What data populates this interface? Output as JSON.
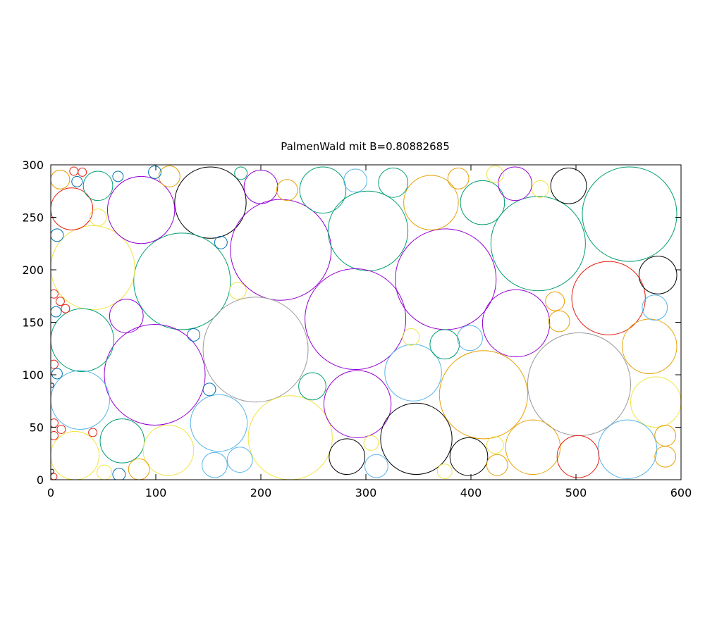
{
  "chart_data": {
    "type": "scatter",
    "title": "PalmenWald mit B=0.80882685",
    "xlim": [
      0,
      600
    ],
    "ylim": [
      0,
      300
    ],
    "x_ticks": [
      "0",
      "100",
      "200",
      "300",
      "400",
      "500",
      "600"
    ],
    "y_ticks": [
      "0",
      "50",
      "100",
      "150",
      "200",
      "250",
      "300"
    ],
    "grid": false,
    "legend": "none",
    "colors": {
      "purple": "#9400d3",
      "teal": "#009e73",
      "skyblue": "#56b4e9",
      "orange": "#e69f00",
      "yellow": "#f0e442",
      "darkblue": "#0072b2",
      "red": "#e51e10",
      "black": "#000000",
      "gray": "#999999"
    },
    "circles": [
      {
        "x": 152,
        "y": 264,
        "r": 34,
        "color": "black"
      },
      {
        "x": 219,
        "y": 219,
        "r": 48,
        "color": "purple"
      },
      {
        "x": 302,
        "y": 237,
        "r": 38,
        "color": "teal"
      },
      {
        "x": 376,
        "y": 191,
        "r": 48,
        "color": "purple"
      },
      {
        "x": 464,
        "y": 225,
        "r": 45,
        "color": "teal"
      },
      {
        "x": 551,
        "y": 253,
        "r": 45,
        "color": "teal"
      },
      {
        "x": 125,
        "y": 189,
        "r": 46,
        "color": "teal"
      },
      {
        "x": 40,
        "y": 202,
        "r": 40,
        "color": "yellow"
      },
      {
        "x": 86,
        "y": 257,
        "r": 32,
        "color": "purple"
      },
      {
        "x": 20,
        "y": 258,
        "r": 20,
        "color": "red"
      },
      {
        "x": 195,
        "y": 124,
        "r": 50,
        "color": "gray"
      },
      {
        "x": 290,
        "y": 153,
        "r": 48,
        "color": "purple"
      },
      {
        "x": 99,
        "y": 100,
        "r": 48,
        "color": "purple"
      },
      {
        "x": 30,
        "y": 133,
        "r": 30,
        "color": "teal"
      },
      {
        "x": 28,
        "y": 76,
        "r": 28,
        "color": "skyblue"
      },
      {
        "x": 23,
        "y": 23,
        "r": 23,
        "color": "yellow"
      },
      {
        "x": 68,
        "y": 37,
        "r": 21,
        "color": "teal"
      },
      {
        "x": 112,
        "y": 28,
        "r": 24,
        "color": "yellow"
      },
      {
        "x": 160,
        "y": 54,
        "r": 27,
        "color": "skyblue"
      },
      {
        "x": 228,
        "y": 40,
        "r": 40,
        "color": "yellow"
      },
      {
        "x": 292,
        "y": 72,
        "r": 32,
        "color": "purple"
      },
      {
        "x": 282,
        "y": 22,
        "r": 17,
        "color": "black"
      },
      {
        "x": 348,
        "y": 39,
        "r": 34,
        "color": "black"
      },
      {
        "x": 345,
        "y": 102,
        "r": 27,
        "color": "skyblue"
      },
      {
        "x": 412,
        "y": 81,
        "r": 42,
        "color": "orange"
      },
      {
        "x": 503,
        "y": 91,
        "r": 49,
        "color": "gray"
      },
      {
        "x": 443,
        "y": 149,
        "r": 32,
        "color": "purple"
      },
      {
        "x": 531,
        "y": 173,
        "r": 35,
        "color": "red"
      },
      {
        "x": 570,
        "y": 127,
        "r": 26,
        "color": "orange"
      },
      {
        "x": 576,
        "y": 74,
        "r": 24,
        "color": "yellow"
      },
      {
        "x": 549,
        "y": 29,
        "r": 28,
        "color": "skyblue"
      },
      {
        "x": 459,
        "y": 31,
        "r": 26,
        "color": "orange"
      },
      {
        "x": 502,
        "y": 22,
        "r": 20,
        "color": "red"
      },
      {
        "x": 398,
        "y": 22,
        "r": 18,
        "color": "black"
      },
      {
        "x": 362,
        "y": 264,
        "r": 26,
        "color": "orange"
      },
      {
        "x": 411,
        "y": 264,
        "r": 21,
        "color": "teal"
      },
      {
        "x": 259,
        "y": 276,
        "r": 22,
        "color": "teal"
      },
      {
        "x": 200,
        "y": 279,
        "r": 16,
        "color": "purple"
      },
      {
        "x": 45,
        "y": 280,
        "r": 14,
        "color": "teal"
      },
      {
        "x": 493,
        "y": 280,
        "r": 17,
        "color": "black"
      },
      {
        "x": 442,
        "y": 282,
        "r": 16,
        "color": "purple"
      },
      {
        "x": 326,
        "y": 283,
        "r": 14,
        "color": "teal"
      },
      {
        "x": 290,
        "y": 285,
        "r": 11,
        "color": "skyblue"
      },
      {
        "x": 388,
        "y": 287,
        "r": 10,
        "color": "orange"
      },
      {
        "x": 113,
        "y": 289,
        "r": 10,
        "color": "orange"
      },
      {
        "x": 225,
        "y": 276,
        "r": 10,
        "color": "orange"
      },
      {
        "x": 9,
        "y": 286,
        "r": 9,
        "color": "orange"
      },
      {
        "x": 423,
        "y": 291,
        "r": 8,
        "color": "yellow"
      },
      {
        "x": 466,
        "y": 277,
        "r": 8,
        "color": "yellow"
      },
      {
        "x": 181,
        "y": 292,
        "r": 6,
        "color": "teal"
      },
      {
        "x": 64,
        "y": 289,
        "r": 5,
        "color": "darkblue"
      },
      {
        "x": 99,
        "y": 293,
        "r": 6,
        "color": "darkblue"
      },
      {
        "x": 25,
        "y": 284,
        "r": 5,
        "color": "darkblue"
      },
      {
        "x": 22,
        "y": 294,
        "r": 4,
        "color": "red"
      },
      {
        "x": 30,
        "y": 293,
        "r": 4,
        "color": "red"
      },
      {
        "x": 45,
        "y": 250,
        "r": 8,
        "color": "yellow"
      },
      {
        "x": 6,
        "y": 233,
        "r": 6,
        "color": "darkblue"
      },
      {
        "x": 162,
        "y": 226,
        "r": 6,
        "color": "darkblue"
      },
      {
        "x": 178,
        "y": 180,
        "r": 8,
        "color": "yellow"
      },
      {
        "x": 72,
        "y": 156,
        "r": 16,
        "color": "purple"
      },
      {
        "x": 136,
        "y": 138,
        "r": 6,
        "color": "darkblue"
      },
      {
        "x": 151,
        "y": 86,
        "r": 6,
        "color": "darkblue"
      },
      {
        "x": 249,
        "y": 89,
        "r": 13,
        "color": "teal"
      },
      {
        "x": 180,
        "y": 19,
        "r": 12,
        "color": "skyblue"
      },
      {
        "x": 156,
        "y": 14,
        "r": 12,
        "color": "skyblue"
      },
      {
        "x": 84,
        "y": 10,
        "r": 10,
        "color": "orange"
      },
      {
        "x": 51,
        "y": 7,
        "r": 7,
        "color": "yellow"
      },
      {
        "x": 65,
        "y": 5,
        "r": 6,
        "color": "darkblue"
      },
      {
        "x": 310,
        "y": 13,
        "r": 11,
        "color": "skyblue"
      },
      {
        "x": 305,
        "y": 35,
        "r": 7,
        "color": "yellow"
      },
      {
        "x": 375,
        "y": 8,
        "r": 7,
        "color": "yellow"
      },
      {
        "x": 425,
        "y": 14,
        "r": 10,
        "color": "orange"
      },
      {
        "x": 423,
        "y": 33,
        "r": 8,
        "color": "yellow"
      },
      {
        "x": 343,
        "y": 136,
        "r": 8,
        "color": "yellow"
      },
      {
        "x": 375,
        "y": 129,
        "r": 14,
        "color": "teal"
      },
      {
        "x": 399,
        "y": 135,
        "r": 12,
        "color": "skyblue"
      },
      {
        "x": 480,
        "y": 170,
        "r": 9,
        "color": "orange"
      },
      {
        "x": 484,
        "y": 151,
        "r": 10,
        "color": "orange"
      },
      {
        "x": 578,
        "y": 195,
        "r": 18,
        "color": "black"
      },
      {
        "x": 575,
        "y": 164,
        "r": 12,
        "color": "skyblue"
      },
      {
        "x": 585,
        "y": 42,
        "r": 10,
        "color": "orange"
      },
      {
        "x": 585,
        "y": 22,
        "r": 10,
        "color": "orange"
      },
      {
        "x": 5,
        "y": 160,
        "r": 5,
        "color": "darkblue"
      },
      {
        "x": 6,
        "y": 101,
        "r": 5,
        "color": "darkblue"
      },
      {
        "x": 3,
        "y": 177,
        "r": 4,
        "color": "red"
      },
      {
        "x": 9,
        "y": 170,
        "r": 4,
        "color": "red"
      },
      {
        "x": 14,
        "y": 163,
        "r": 4,
        "color": "red"
      },
      {
        "x": 3,
        "y": 110,
        "r": 4,
        "color": "red"
      },
      {
        "x": 3,
        "y": 54,
        "r": 4,
        "color": "red"
      },
      {
        "x": 10,
        "y": 48,
        "r": 4,
        "color": "red"
      },
      {
        "x": 3,
        "y": 42,
        "r": 4,
        "color": "red"
      },
      {
        "x": 40,
        "y": 45,
        "r": 4,
        "color": "red"
      },
      {
        "x": 3,
        "y": 3,
        "r": 3,
        "color": "red"
      },
      {
        "x": 1,
        "y": 90,
        "r": 2,
        "color": "black"
      },
      {
        "x": 1,
        "y": 8,
        "r": 2,
        "color": "black"
      }
    ]
  }
}
